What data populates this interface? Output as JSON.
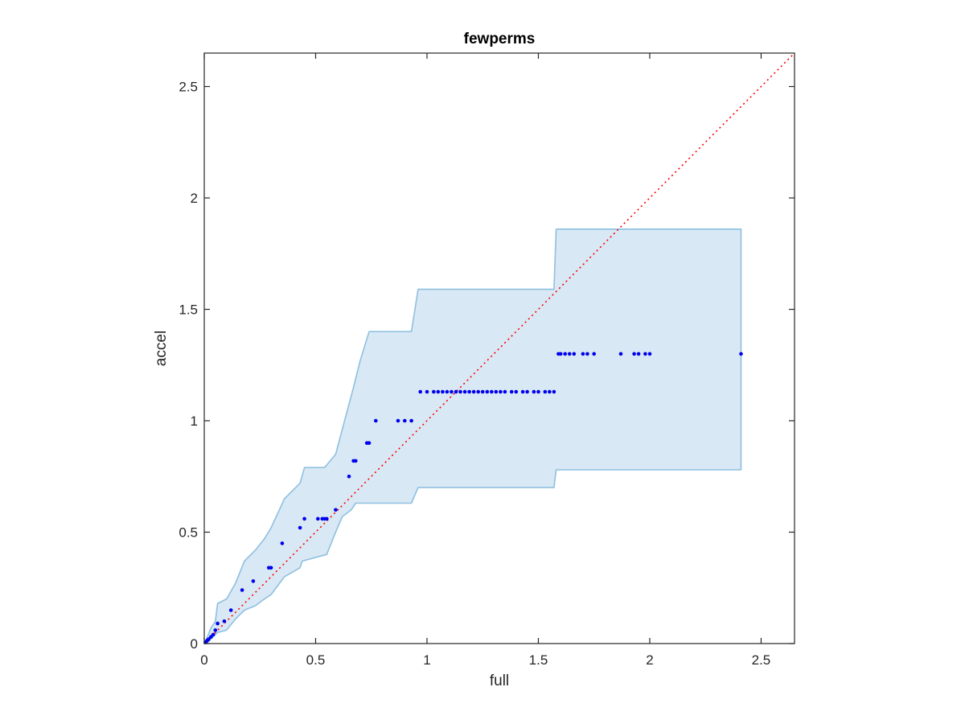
{
  "chart_data": {
    "type": "scatter",
    "title": "fewperms",
    "xlabel": "full",
    "ylabel": "accel",
    "xlim": [
      0,
      2.65
    ],
    "ylim": [
      0,
      2.65
    ],
    "xticks": [
      0,
      0.5,
      1,
      1.5,
      2,
      2.5
    ],
    "yticks": [
      0,
      0.5,
      1,
      1.5,
      2,
      2.5
    ],
    "xtick_labels": [
      "0",
      "0.5",
      "1",
      "1.5",
      "2",
      "2.5"
    ],
    "ytick_labels": [
      "0",
      "0.5",
      "1",
      "1.5",
      "2",
      "2.5"
    ],
    "grid": false,
    "legend": false,
    "colors": {
      "points": "#0000ee",
      "band_fill": "#d8e8f4",
      "band_edge": "#8fc0e0",
      "reference_line": "#ff0000",
      "axes": "#262626"
    },
    "reference_line": {
      "type": "y=x",
      "style": "dotted"
    },
    "band_upper": [
      [
        0.0,
        0.0
      ],
      [
        0.01,
        0.02
      ],
      [
        0.03,
        0.07
      ],
      [
        0.05,
        0.1
      ],
      [
        0.06,
        0.18
      ],
      [
        0.1,
        0.2
      ],
      [
        0.14,
        0.27
      ],
      [
        0.18,
        0.37
      ],
      [
        0.23,
        0.42
      ],
      [
        0.27,
        0.47
      ],
      [
        0.3,
        0.52
      ],
      [
        0.36,
        0.65
      ],
      [
        0.43,
        0.72
      ],
      [
        0.45,
        0.79
      ],
      [
        0.54,
        0.79
      ],
      [
        0.59,
        0.85
      ],
      [
        0.63,
        1.0
      ],
      [
        0.67,
        1.15
      ],
      [
        0.7,
        1.27
      ],
      [
        0.74,
        1.4
      ],
      [
        0.93,
        1.4
      ],
      [
        0.96,
        1.59
      ],
      [
        1.57,
        1.59
      ],
      [
        1.58,
        1.86
      ],
      [
        2.41,
        1.86
      ]
    ],
    "band_lower": [
      [
        2.41,
        0.78
      ],
      [
        1.58,
        0.78
      ],
      [
        1.57,
        0.7
      ],
      [
        0.96,
        0.7
      ],
      [
        0.93,
        0.63
      ],
      [
        0.68,
        0.63
      ],
      [
        0.66,
        0.6
      ],
      [
        0.62,
        0.57
      ],
      [
        0.59,
        0.5
      ],
      [
        0.55,
        0.4
      ],
      [
        0.44,
        0.37
      ],
      [
        0.43,
        0.34
      ],
      [
        0.36,
        0.3
      ],
      [
        0.3,
        0.22
      ],
      [
        0.27,
        0.2
      ],
      [
        0.23,
        0.17
      ],
      [
        0.18,
        0.15
      ],
      [
        0.14,
        0.11
      ],
      [
        0.1,
        0.06
      ],
      [
        0.06,
        0.05
      ],
      [
        0.04,
        0.03
      ],
      [
        0.02,
        0.01
      ],
      [
        0.0,
        0.0
      ]
    ],
    "points": [
      [
        0.005,
        0.005
      ],
      [
        0.01,
        0.01
      ],
      [
        0.015,
        0.015
      ],
      [
        0.02,
        0.02
      ],
      [
        0.03,
        0.03
      ],
      [
        0.04,
        0.04
      ],
      [
        0.05,
        0.06
      ],
      [
        0.06,
        0.09
      ],
      [
        0.09,
        0.1
      ],
      [
        0.12,
        0.15
      ],
      [
        0.17,
        0.24
      ],
      [
        0.22,
        0.28
      ],
      [
        0.29,
        0.34
      ],
      [
        0.3,
        0.34
      ],
      [
        0.35,
        0.45
      ],
      [
        0.43,
        0.52
      ],
      [
        0.45,
        0.56
      ],
      [
        0.51,
        0.56
      ],
      [
        0.53,
        0.56
      ],
      [
        0.54,
        0.56
      ],
      [
        0.55,
        0.56
      ],
      [
        0.59,
        0.6
      ],
      [
        0.65,
        0.75
      ],
      [
        0.67,
        0.82
      ],
      [
        0.68,
        0.82
      ],
      [
        0.73,
        0.9
      ],
      [
        0.74,
        0.9
      ],
      [
        0.77,
        1.0
      ],
      [
        0.87,
        1.0
      ],
      [
        0.9,
        1.0
      ],
      [
        0.93,
        1.0
      ],
      [
        0.97,
        1.13
      ],
      [
        1.0,
        1.13
      ],
      [
        1.03,
        1.13
      ],
      [
        1.05,
        1.13
      ],
      [
        1.07,
        1.13
      ],
      [
        1.09,
        1.13
      ],
      [
        1.11,
        1.13
      ],
      [
        1.13,
        1.13
      ],
      [
        1.15,
        1.13
      ],
      [
        1.17,
        1.13
      ],
      [
        1.19,
        1.13
      ],
      [
        1.21,
        1.13
      ],
      [
        1.23,
        1.13
      ],
      [
        1.25,
        1.13
      ],
      [
        1.27,
        1.13
      ],
      [
        1.29,
        1.13
      ],
      [
        1.31,
        1.13
      ],
      [
        1.33,
        1.13
      ],
      [
        1.35,
        1.13
      ],
      [
        1.38,
        1.13
      ],
      [
        1.4,
        1.13
      ],
      [
        1.43,
        1.13
      ],
      [
        1.45,
        1.13
      ],
      [
        1.48,
        1.13
      ],
      [
        1.5,
        1.13
      ],
      [
        1.53,
        1.13
      ],
      [
        1.55,
        1.13
      ],
      [
        1.57,
        1.13
      ],
      [
        1.59,
        1.3
      ],
      [
        1.6,
        1.3
      ],
      [
        1.62,
        1.3
      ],
      [
        1.64,
        1.3
      ],
      [
        1.66,
        1.3
      ],
      [
        1.7,
        1.3
      ],
      [
        1.72,
        1.3
      ],
      [
        1.75,
        1.3
      ],
      [
        1.87,
        1.3
      ],
      [
        1.93,
        1.3
      ],
      [
        1.95,
        1.3
      ],
      [
        1.98,
        1.3
      ],
      [
        2.0,
        1.3
      ],
      [
        2.41,
        1.3
      ]
    ]
  }
}
